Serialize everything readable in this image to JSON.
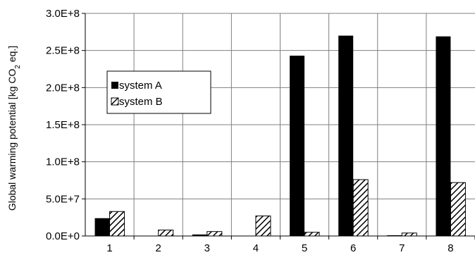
{
  "chart_data": {
    "type": "bar",
    "title": "",
    "xlabel": "",
    "ylabel": "Global warming potential  [kg CO",
    "ylabel_sub": "2",
    "ylabel_tail": " eq.]",
    "categories": [
      "1",
      "2",
      "3",
      "4",
      "5",
      "6",
      "7",
      "8"
    ],
    "ylim": [
      0,
      300000000
    ],
    "yticks": [
      0,
      50000000,
      100000000,
      150000000,
      200000000,
      250000000,
      300000000
    ],
    "ytick_labels": [
      "0.0E+0",
      "5.0E+7",
      "1.0E+8",
      "1.5E+8",
      "2.0E+8",
      "2.5E+8",
      "3.0E+8"
    ],
    "grid": true,
    "legend_position": "upper-left-inside",
    "series": [
      {
        "name": "system A",
        "color": "#000000",
        "pattern": "solid",
        "values": [
          24000000,
          0,
          2000000,
          0,
          243000000,
          270000000,
          1000000,
          269000000
        ]
      },
      {
        "name": "system B",
        "color": "#000000",
        "pattern": "diagonal-hatch",
        "values": [
          33000000,
          8000000,
          6000000,
          27000000,
          5000000,
          76000000,
          4000000,
          72000000
        ]
      }
    ]
  }
}
